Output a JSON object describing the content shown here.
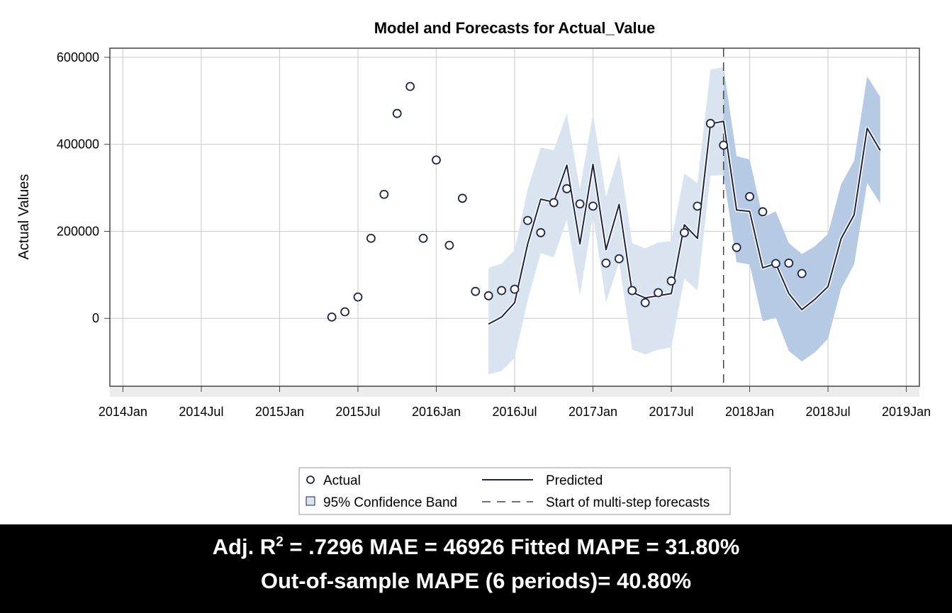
{
  "chart_data": {
    "type": "line",
    "title": "Model and Forecasts for Actual_Value",
    "xlabel": "",
    "ylabel": "Actual Values",
    "x_ticks": [
      "2014Jan",
      "2014Jul",
      "2015Jan",
      "2015Jul",
      "2016Jan",
      "2016Jul",
      "2017Jan",
      "2017Jul",
      "2018Jan",
      "2018Jul",
      "2019Jan"
    ],
    "x_tick_dates": [
      "2014-01",
      "2014-07",
      "2015-01",
      "2015-07",
      "2016-01",
      "2016-07",
      "2017-01",
      "2017-07",
      "2018-01",
      "2018-07",
      "2019-01"
    ],
    "y_ticks": [
      0,
      200000,
      400000,
      600000
    ],
    "y_tick_labels": [
      "0",
      "200000",
      "400000",
      "600000"
    ],
    "xlim": [
      "2013-12",
      "2019-02"
    ],
    "ylim": [
      -156000,
      621000
    ],
    "grid": true,
    "forecast_start": "2017-11",
    "legend_position": "bottom",
    "legend": {
      "actual": "Actual",
      "predicted": "Predicted",
      "band": "95% Confidence Band",
      "forecast_start": "Start of multi-step forecasts"
    },
    "colors": {
      "line": "#1b2444",
      "band_fit": "#dae4f0",
      "band_forecast": "#b6cae3",
      "grid": "#d0d0d0"
    },
    "actual": {
      "name": "Actual",
      "x": [
        "2015-05",
        "2015-06",
        "2015-07",
        "2015-08",
        "2015-09",
        "2015-10",
        "2015-11",
        "2015-12",
        "2016-01",
        "2016-02",
        "2016-03",
        "2016-04",
        "2016-05",
        "2016-06",
        "2016-07",
        "2016-08",
        "2016-09",
        "2016-10",
        "2016-11",
        "2016-12",
        "2017-01",
        "2017-02",
        "2017-03",
        "2017-04",
        "2017-05",
        "2017-06",
        "2017-07",
        "2017-08",
        "2017-09",
        "2017-10",
        "2017-11",
        "2017-12",
        "2018-01",
        "2018-02",
        "2018-03",
        "2018-04",
        "2018-05"
      ],
      "y": [
        3000,
        15000,
        49000,
        184000,
        285000,
        471000,
        533000,
        184000,
        364000,
        168000,
        276000,
        62000,
        52000,
        64000,
        67000,
        225000,
        197000,
        266000,
        298000,
        263000,
        258000,
        127000,
        137000,
        64000,
        36000,
        59000,
        86000,
        197000,
        258000,
        448000,
        398000,
        163000,
        280000,
        245000,
        126000,
        127000,
        103000
      ]
    },
    "predicted": {
      "name": "Predicted",
      "x": [
        "2016-05",
        "2016-06",
        "2016-07",
        "2016-08",
        "2016-09",
        "2016-10",
        "2016-11",
        "2016-12",
        "2017-01",
        "2017-02",
        "2017-03",
        "2017-04",
        "2017-05",
        "2017-06",
        "2017-07",
        "2017-08",
        "2017-09",
        "2017-10",
        "2017-11",
        "2017-12",
        "2018-01",
        "2018-02",
        "2018-03",
        "2018-04",
        "2018-05",
        "2018-06",
        "2018-07",
        "2018-08",
        "2018-09",
        "2018-10",
        "2018-11"
      ],
      "y": [
        -13000,
        3000,
        36000,
        171000,
        274000,
        267000,
        352000,
        171000,
        354000,
        158000,
        262000,
        60000,
        47000,
        52000,
        57000,
        215000,
        184000,
        447000,
        453000,
        249000,
        246000,
        116000,
        126000,
        57000,
        20000,
        44000,
        73000,
        183000,
        238000,
        437000,
        386000
      ],
      "upper": [
        116000,
        126000,
        157000,
        297000,
        393000,
        386000,
        471000,
        297000,
        471000,
        280000,
        378000,
        173000,
        161000,
        174000,
        178000,
        333000,
        311000,
        572000,
        577000,
        373000,
        365000,
        232000,
        246000,
        173000,
        148000,
        166000,
        194000,
        308000,
        362000,
        556000,
        509000
      ],
      "lower": [
        -129000,
        -121000,
        -91000,
        42000,
        150000,
        140000,
        227000,
        52000,
        237000,
        36000,
        129000,
        -72000,
        -83000,
        -72000,
        -67000,
        91000,
        64000,
        328000,
        329000,
        129000,
        124000,
        -7000,
        2000,
        -75000,
        -99000,
        -78000,
        -47000,
        68000,
        124000,
        311000,
        264000
      ]
    }
  },
  "footer": {
    "line1_prefix": "Adj. R",
    "line1_sup": "2",
    "line1_rest": " = .7296 MAE = 46926 Fitted MAPE = 31.80%",
    "line2": "Out-of-sample MAPE (6 periods)= 40.80%"
  }
}
